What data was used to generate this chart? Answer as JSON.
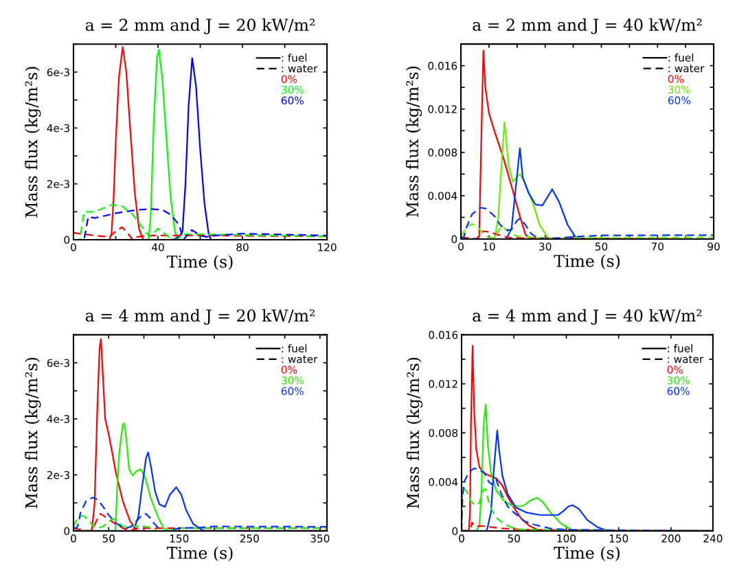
{
  "chart_data": [
    {
      "type": "line",
      "title": "a = 2 mm and J = 20 kW/m²",
      "xlabel": "Time (s)",
      "ylabel": "Mass flux (kg/m²s)",
      "legend": "top right",
      "annotations": [
        ": fuel",
        ": water"
      ],
      "xlim": [
        0,
        120
      ],
      "xticks": [
        0,
        {
          "value": 20,
          "label": null
        },
        40,
        {
          "value": 60,
          "label": null
        },
        80,
        {
          "value": 100,
          "label": null
        },
        120
      ],
      "ylim": [
        0,
        0.007
      ],
      "yticks": [
        0,
        {
          "value": 0.001,
          "label": null
        },
        {
          "value": 0.002,
          "label": "2e-3"
        },
        {
          "value": 0.003,
          "label": null
        },
        {
          "value": 0.004,
          "label": "4e-3"
        },
        {
          "value": 0.005,
          "label": null
        },
        {
          "value": 0.006,
          "label": "6e-3"
        },
        {
          "value": 0.007,
          "label": null
        }
      ],
      "series": [
        {
          "name": "0%",
          "color": "#ff0000",
          "line_style": "solid",
          "x": [
            0,
            17,
            18,
            19,
            20,
            21.5,
            23.3,
            25,
            27,
            29,
            31,
            33,
            120
          ],
          "values": [
            0,
            0,
            0.0002,
            0.0015,
            0.0035,
            0.0058,
            0.0069,
            0.006,
            0.0038,
            0.0017,
            0.0004,
            0,
            0
          ]
        },
        {
          "name": "30%",
          "color": "#00ff00",
          "line_style": "solid",
          "x": [
            0,
            35.5,
            36.5,
            38,
            39.5,
            40.4,
            42,
            44,
            46,
            48,
            49.4,
            120
          ],
          "values": [
            0,
            0,
            0.0008,
            0.0042,
            0.0065,
            0.0068,
            0.0058,
            0.0036,
            0.0015,
            0.0003,
            0,
            0
          ]
        },
        {
          "name": "60%",
          "color": "#0000ff",
          "line_style": "solid",
          "x": [
            0,
            46.7,
            50,
            51.6,
            53,
            54.5,
            56.2,
            58,
            60,
            62,
            64,
            65.1,
            120
          ],
          "values": [
            0,
            0,
            0.0001,
            0.0003,
            0.002,
            0.0048,
            0.0065,
            0.0055,
            0.0032,
            0.0013,
            0.0002,
            0,
            0
          ]
        },
        {
          "color": "#ff0000",
          "line_style": "dashed",
          "x": [
            0,
            5,
            10,
            17,
            20,
            23,
            26,
            28,
            30,
            35,
            60,
            120
          ],
          "values": [
            0.00025,
            0.0002,
            0.00015,
            0.0001,
            0.0003,
            0.00045,
            0.0002,
            0,
            0.0001,
            0.00015,
            0.00015,
            0.00012
          ]
        },
        {
          "color": "#00ff00",
          "line_style": "dashed",
          "x": [
            0,
            3,
            5,
            10,
            18,
            23,
            28,
            33,
            36,
            40,
            45,
            49,
            52,
            60,
            120
          ],
          "values": [
            0,
            0,
            0.001,
            0.001,
            0.00125,
            0.0012,
            0.0009,
            0.0004,
            0.0001,
            0.0004,
            0.0001,
            0,
            0.0002,
            0.0002,
            0.00012
          ]
        },
        {
          "color": "#0000ff",
          "line_style": "dashed",
          "x": [
            0,
            5,
            7,
            10,
            15,
            20,
            30,
            37,
            42,
            46,
            50,
            52,
            56,
            60,
            63,
            67,
            80,
            120
          ],
          "values": [
            0,
            0,
            0.00082,
            0.00078,
            0.00086,
            0.00095,
            0.00107,
            0.0011,
            0.00107,
            0.0009,
            0.00053,
            0,
            0.00035,
            0.00015,
            0.0001,
            0.00015,
            0.00022,
            0.00015
          ]
        }
      ]
    },
    {
      "type": "line",
      "title": "a = 2 mm and J = 40 kW/m²",
      "xlabel": "Time (s)",
      "ylabel": "Mass flux (kg/m²s)",
      "legend": "top right",
      "annotations": [
        ": fuel",
        ": water"
      ],
      "xlim": [
        0,
        90
      ],
      "xticks": [
        0,
        10,
        {
          "value": 20,
          "label": null
        },
        30,
        {
          "value": 40,
          "label": null
        },
        50,
        {
          "value": 60,
          "label": null
        },
        70,
        {
          "value": 80,
          "label": null
        },
        90
      ],
      "ylim": [
        0,
        0.018
      ],
      "yticks": [
        0,
        {
          "value": 0.002,
          "label": null
        },
        0.004,
        {
          "value": 0.006,
          "label": null
        },
        0.008,
        {
          "value": 0.01,
          "label": null
        },
        0.012,
        {
          "value": 0.014,
          "label": null
        },
        0.016,
        {
          "value": 0.018,
          "label": null
        }
      ],
      "series": [
        {
          "name": "0%",
          "color": "#ff0000",
          "line_style": "solid",
          "x": [
            0,
            5.5,
            6.5,
            7.5,
            8,
            8.7,
            9.5,
            10,
            12,
            15,
            18,
            21,
            23,
            25,
            90
          ],
          "values": [
            0,
            0,
            0.0003,
            0.012,
            0.0174,
            0.014,
            0.0125,
            0.0116,
            0.0099,
            0.0076,
            0.0049,
            0.0021,
            0.0004,
            0,
            0
          ]
        },
        {
          "name": "30%",
          "color": "#66ee00",
          "line_style": "solid",
          "x": [
            0,
            12,
            13.3,
            14.5,
            15.5,
            17,
            18.5,
            21,
            23,
            26,
            28,
            31,
            33,
            90
          ],
          "values": [
            0,
            0,
            0.002,
            0.007,
            0.0108,
            0.0068,
            0.0053,
            0.006,
            0.0051,
            0.003,
            0.0013,
            0.0001,
            0,
            0
          ]
        },
        {
          "name": "60%",
          "color": "#0033ff",
          "line_style": "solid",
          "x": [
            0,
            16,
            18,
            19.5,
            21,
            22,
            24,
            26.5,
            29,
            32.5,
            35,
            38,
            41,
            43,
            90
          ],
          "values": [
            0,
            0,
            0.0009,
            0.0047,
            0.0084,
            0.0057,
            0.0043,
            0.0032,
            0.0031,
            0.0046,
            0.0034,
            0.0013,
            0.0001,
            0,
            0
          ]
        },
        {
          "color": "#ff0000",
          "line_style": "dashed",
          "x": [
            0,
            3,
            6,
            7.5,
            9,
            12,
            15,
            18,
            90
          ],
          "values": [
            0.00015,
            0.0001,
            0,
            0.0007,
            0.0007,
            0.0005,
            0.00025,
            0.0001,
            0
          ]
        },
        {
          "color": "#66ee00",
          "line_style": "dashed",
          "x": [
            0,
            2,
            4,
            6,
            8,
            10,
            12,
            13.5,
            14.5,
            16,
            18,
            20,
            30,
            90
          ],
          "values": [
            0.00025,
            0.0011,
            0.0014,
            0.0011,
            0.0005,
            0.0001,
            0.00015,
            0.0008,
            0.0012,
            0.0009,
            0.0005,
            0.00025,
            0.0001,
            0.00015
          ]
        },
        {
          "color": "#0033ff",
          "line_style": "dashed",
          "x": [
            0,
            1,
            2,
            4,
            7,
            9,
            12,
            14,
            16.5,
            18,
            20,
            21,
            23,
            25,
            27,
            30,
            40,
            50,
            90
          ],
          "values": [
            0.00015,
            0.00015,
            0.0011,
            0.0023,
            0.0029,
            0.0028,
            0.0021,
            0.0013,
            0.0008,
            0.0009,
            0.0017,
            0.0019,
            0.0013,
            0.0005,
            0.00015,
            0,
            0.0002,
            0.00034,
            0.00036
          ]
        }
      ]
    },
    {
      "type": "line",
      "title": "a = 4 mm and J = 20 kW/m²",
      "xlabel": "Time (s)",
      "ylabel": "Mass flux (kg/m²s)",
      "legend": "top right",
      "annotations": [
        ": fuel",
        ": water"
      ],
      "xlim": [
        0,
        360
      ],
      "xticks": [
        0,
        50,
        {
          "value": 100,
          "label": null
        },
        150,
        {
          "value": 200,
          "label": null
        },
        250,
        {
          "value": 300,
          "label": null
        },
        350
      ],
      "ylim": [
        0,
        0.007
      ],
      "yticks": [
        0,
        {
          "value": 0.001,
          "label": null
        },
        {
          "value": 0.002,
          "label": "2e-3"
        },
        {
          "value": 0.003,
          "label": null
        },
        {
          "value": 0.004,
          "label": "4e-3"
        },
        {
          "value": 0.005,
          "label": null
        },
        {
          "value": 0.006,
          "label": "6e-3"
        },
        {
          "value": 0.007,
          "label": null
        }
      ],
      "series": [
        {
          "name": "0%",
          "color": "#ff0000",
          "line_style": "solid",
          "x": [
            0,
            26,
            30,
            34,
            37,
            39,
            45,
            50,
            55,
            60,
            70,
            80,
            90,
            360
          ],
          "values": [
            0,
            0,
            0.001,
            0.0045,
            0.0065,
            0.00685,
            0.004,
            0.00345,
            0.0028,
            0.0021,
            0.00107,
            0.00037,
            0,
            0
          ]
        },
        {
          "name": "30%",
          "color": "#22ee00",
          "line_style": "solid",
          "x": [
            0,
            59.5,
            62,
            65,
            70,
            72,
            75,
            79,
            84,
            89,
            95,
            101,
            110,
            120,
            128,
            135,
            360
          ],
          "values": [
            0,
            0,
            0.0015,
            0.0028,
            0.0038,
            0.00384,
            0.0033,
            0.0022,
            0.00198,
            0.00213,
            0.0022,
            0.00197,
            0.00115,
            0.0005,
            0.0001,
            0,
            0
          ]
        },
        {
          "name": "60%",
          "color": "#0033ff",
          "line_style": "solid",
          "x": [
            0,
            85,
            92,
            97,
            103,
            106,
            110,
            116,
            122,
            130,
            137,
            146,
            153,
            160,
            170,
            185,
            360
          ],
          "values": [
            0,
            0,
            0.0005,
            0.0015,
            0.0026,
            0.0028,
            0.0023,
            0.0014,
            0.00095,
            0.00086,
            0.0013,
            0.00156,
            0.0013,
            0.00074,
            0.00025,
            0,
            0
          ]
        },
        {
          "color": "#ff0000",
          "line_style": "dashed",
          "x": [
            0,
            20,
            26,
            32,
            38,
            42,
            50,
            60,
            70,
            80,
            90,
            150,
            360
          ],
          "values": [
            0.0001,
            0,
            0,
            0.00033,
            0.00061,
            0.00056,
            0.00041,
            0.00025,
            0.0001,
            0,
            0.0001,
            0.0001,
            0.0001
          ]
        },
        {
          "color": "#22ee00",
          "line_style": "dashed",
          "x": [
            0,
            4,
            10,
            15,
            22,
            30,
            35,
            42,
            52,
            57,
            62,
            70,
            80,
            95,
            105,
            120,
            130,
            150,
            250,
            360
          ],
          "values": [
            0.00016,
            0.00037,
            0.00053,
            0.00053,
            0.00037,
            0.00012,
            0.0001,
            0.00016,
            0.00037,
            0.00043,
            0.00033,
            0.00016,
            0.00016,
            0.00018,
            0.00015,
            0,
            0,
            0.0001,
            0.0001,
            0.0001
          ]
        },
        {
          "color": "#0033ff",
          "line_style": "dashed",
          "x": [
            0,
            3,
            6,
            10,
            18,
            27,
            32,
            40,
            50,
            60,
            70,
            75,
            82,
            90,
            97,
            103,
            108,
            115,
            125,
            135,
            150,
            180,
            200,
            360
          ],
          "values": [
            0.00012,
            0.0001,
            0.00016,
            0.00065,
            0.00107,
            0.00119,
            0.00115,
            0.00094,
            0.00057,
            0.00029,
            0.00012,
            0.0001,
            0.00016,
            0.00037,
            0.00056,
            0.00061,
            0.00049,
            0.00025,
            0,
            0,
            0.0001,
            0.00012,
            0.00016,
            0.00015
          ]
        }
      ]
    },
    {
      "type": "line",
      "title": "a = 4 mm and J = 40 kW/m²",
      "xlabel": "Time (s)",
      "ylabel": "Mass flux (kg/m²s)",
      "legend": "top right",
      "annotations": [
        ": fuel",
        ": water"
      ],
      "xlim": [
        0,
        240
      ],
      "xticks": [
        0,
        50,
        100,
        150,
        200,
        240
      ],
      "ylim": [
        0,
        0.016
      ],
      "yticks": [
        0,
        {
          "value": 0.002,
          "label": null
        },
        0.004,
        {
          "value": 0.006,
          "label": null
        },
        0.008,
        {
          "value": 0.01,
          "label": null
        },
        0.012,
        {
          "value": 0.014,
          "label": null
        },
        0.016
      ],
      "series": [
        {
          "name": "0%",
          "color": "#ff0000",
          "line_style": "solid",
          "x": [
            0,
            7,
            8,
            9,
            10.5,
            12,
            14,
            17,
            22,
            27,
            33,
            39,
            44,
            50,
            57,
            65,
            75,
            240
          ],
          "values": [
            0,
            0,
            0.0015,
            0.0089,
            0.0151,
            0.0099,
            0.0067,
            0.0052,
            0.0047,
            0.0045,
            0.0043,
            0.0037,
            0.0028,
            0.0019,
            0.001,
            0.0004,
            0,
            0
          ]
        },
        {
          "name": "30%",
          "color": "#22ee00",
          "line_style": "solid",
          "x": [
            0,
            14,
            17,
            19,
            21,
            23,
            25,
            28,
            33,
            40,
            47,
            55,
            60,
            66,
            72,
            77,
            85,
            95,
            105,
            110,
            240
          ],
          "values": [
            0,
            0,
            0.0004,
            0.0033,
            0.0086,
            0.0103,
            0.0071,
            0.0048,
            0.0033,
            0.0025,
            0.0021,
            0.002,
            0.0021,
            0.0025,
            0.0027,
            0.0024,
            0.0015,
            0.0006,
            0.0001,
            0,
            0
          ]
        },
        {
          "name": "60%",
          "color": "#0033ff",
          "line_style": "solid",
          "x": [
            0,
            24,
            28,
            31,
            34,
            36,
            39,
            44,
            52,
            62,
            75,
            92,
            97,
            102,
            106,
            112,
            120,
            130,
            140,
            240
          ],
          "values": [
            0,
            0,
            0.0015,
            0.0052,
            0.0082,
            0.0065,
            0.0045,
            0.003,
            0.0019,
            0.0015,
            0.0013,
            0.0013,
            0.0016,
            0.002,
            0.0021,
            0.0018,
            0.0009,
            0.0003,
            0,
            0
          ]
        },
        {
          "color": "#ff0000",
          "line_style": "dashed",
          "x": [
            0,
            8,
            10,
            12,
            20,
            30,
            40,
            60,
            240
          ],
          "values": [
            0,
            0,
            0.0007,
            0.0004,
            0.0004,
            0.0003,
            0.0002,
            0.0001,
            0
          ]
        },
        {
          "color": "#22ee00",
          "line_style": "dashed",
          "x": [
            0,
            2,
            5,
            9,
            13,
            17,
            21,
            23,
            27,
            33,
            40,
            50,
            60,
            240
          ],
          "values": [
            0.0025,
            0.0035,
            0.0032,
            0.0024,
            0.0021,
            0.0023,
            0.0034,
            0.0034,
            0.002,
            0.0011,
            0.0006,
            0.0002,
            0.0001,
            0
          ]
        },
        {
          "color": "#0033ff",
          "line_style": "dashed",
          "x": [
            0,
            1,
            3,
            7,
            12,
            17,
            22,
            26,
            29,
            33,
            35,
            38,
            44,
            50,
            60,
            70,
            85,
            100,
            240
          ],
          "values": [
            0,
            0.003,
            0.0041,
            0.0048,
            0.0051,
            0.005,
            0.0047,
            0.004,
            0.0038,
            0.0042,
            0.0037,
            0.003,
            0.002,
            0.0015,
            0.0008,
            0.0005,
            0.0002,
            0.0001,
            0
          ]
        }
      ]
    }
  ]
}
